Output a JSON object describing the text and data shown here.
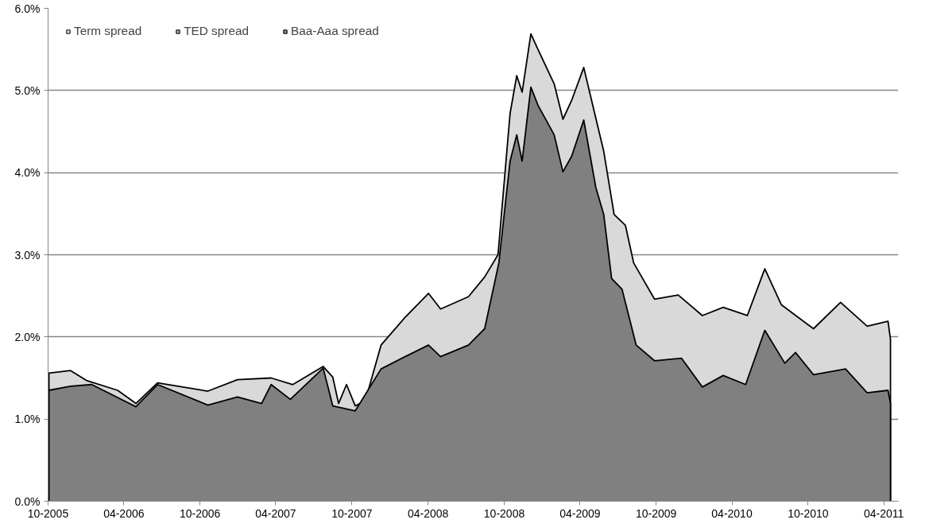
{
  "chart_data": {
    "type": "area",
    "xlim": [
      "2005-10-01",
      "2011-05-06"
    ],
    "xticks": [
      {
        "value": "2005-10-01",
        "label": "10-2005"
      },
      {
        "value": "2006-04-01",
        "label": "04-2006"
      },
      {
        "value": "2006-10-01",
        "label": "10-2006"
      },
      {
        "value": "2007-04-01",
        "label": "04-2007"
      },
      {
        "value": "2007-10-01",
        "label": "10-2007"
      },
      {
        "value": "2008-04-01",
        "label": "04-2008"
      },
      {
        "value": "2008-10-01",
        "label": "10-2008"
      },
      {
        "value": "2009-04-01",
        "label": "04-2009"
      },
      {
        "value": "2009-10-01",
        "label": "10-2009"
      },
      {
        "value": "2010-04-01",
        "label": "04-2010"
      },
      {
        "value": "2010-10-01",
        "label": "10-2010"
      },
      {
        "value": "2011-04-01",
        "label": "04-2011"
      }
    ],
    "ylim": [
      0,
      6
    ],
    "yticks": [
      {
        "value": 0,
        "label": "0.0%"
      },
      {
        "value": 1,
        "label": "1.0%"
      },
      {
        "value": 2,
        "label": "2.0%"
      },
      {
        "value": 3,
        "label": "3.0%"
      },
      {
        "value": 4,
        "label": "4.0%"
      },
      {
        "value": 5,
        "label": "5.0%"
      },
      {
        "value": 6,
        "label": "6.0%"
      }
    ],
    "grid": "y",
    "legend": "top left",
    "series": [
      {
        "name": "Term spread",
        "color": "#d9d9d9",
        "x": [
          "2005-10-03",
          "2005-11-24",
          "2006-01-01",
          "2006-03-17",
          "2006-04-30",
          "2006-06-21",
          "2006-10-20",
          "2006-12-30",
          "2007-03-21",
          "2007-05-12",
          "2007-07-24",
          "2007-08-16",
          "2007-08-30",
          "2007-09-18",
          "2007-10-09",
          "2007-11-02",
          "2007-12-10",
          "2008-02-06",
          "2008-04-02",
          "2008-05-01",
          "2008-07-07",
          "2008-08-15",
          "2008-09-16",
          "2008-10-15",
          "2008-10-31",
          "2008-11-13",
          "2008-12-04",
          "2008-12-21",
          "2009-01-29",
          "2009-02-19",
          "2009-03-12",
          "2009-04-10",
          "2009-05-03",
          "2009-05-28",
          "2009-06-22",
          "2009-07-19",
          "2009-08-08",
          "2009-09-27",
          "2009-11-23",
          "2010-01-20",
          "2010-03-11",
          "2010-05-08",
          "2010-06-19",
          "2010-07-29",
          "2010-10-14",
          "2010-12-18",
          "2011-02-20",
          "2011-04-11",
          "2011-04-17"
        ],
        "values": [
          1.56,
          1.59,
          1.47,
          1.35,
          1.19,
          1.44,
          1.34,
          1.48,
          1.5,
          1.42,
          1.64,
          1.51,
          1.19,
          1.42,
          1.16,
          1.22,
          1.9,
          2.24,
          2.53,
          2.34,
          2.49,
          2.73,
          3.0,
          4.72,
          5.18,
          4.98,
          5.69,
          5.5,
          5.08,
          4.65,
          4.88,
          5.28,
          4.79,
          4.26,
          3.49,
          3.36,
          2.9,
          2.46,
          2.51,
          2.26,
          2.36,
          2.26,
          2.83,
          2.39,
          2.1,
          2.42,
          2.13,
          2.19,
          1.97
        ]
      },
      {
        "name": "TED spread",
        "color": "#a6a6a6",
        "type": "area"
      },
      {
        "name": "Baa-Aaa spread",
        "color": "#808080",
        "x": [
          "2005-10-03",
          "2005-11-24",
          "2006-01-14",
          "2006-04-30",
          "2006-06-21",
          "2006-10-20",
          "2006-12-30",
          "2007-02-26",
          "2007-03-21",
          "2007-05-06",
          "2007-07-24",
          "2007-08-16",
          "2007-10-09",
          "2007-12-10",
          "2008-02-06",
          "2008-04-02",
          "2008-05-01",
          "2008-07-07",
          "2008-08-15",
          "2008-09-18",
          "2008-10-15",
          "2008-10-31",
          "2008-11-13",
          "2008-12-04",
          "2008-12-21",
          "2009-01-29",
          "2009-02-19",
          "2009-03-12",
          "2009-04-10",
          "2009-05-09",
          "2009-05-28",
          "2009-06-16",
          "2009-07-11",
          "2009-08-14",
          "2009-09-27",
          "2009-12-01",
          "2010-01-20",
          "2010-03-11",
          "2010-05-04",
          "2010-06-19",
          "2010-08-06",
          "2010-09-01",
          "2010-10-14",
          "2010-12-30",
          "2011-02-20",
          "2011-04-11",
          "2011-04-17"
        ],
        "values": [
          1.35,
          1.4,
          1.42,
          1.15,
          1.42,
          1.17,
          1.27,
          1.19,
          1.42,
          1.24,
          1.62,
          1.16,
          1.1,
          1.61,
          1.76,
          1.9,
          1.76,
          1.9,
          2.1,
          2.9,
          4.14,
          4.46,
          4.14,
          5.04,
          4.82,
          4.46,
          4.01,
          4.2,
          4.64,
          3.82,
          3.49,
          2.71,
          2.58,
          1.9,
          1.71,
          1.74,
          1.39,
          1.53,
          1.42,
          2.08,
          1.68,
          1.81,
          1.54,
          1.61,
          1.32,
          1.35,
          1.19
        ]
      }
    ]
  }
}
